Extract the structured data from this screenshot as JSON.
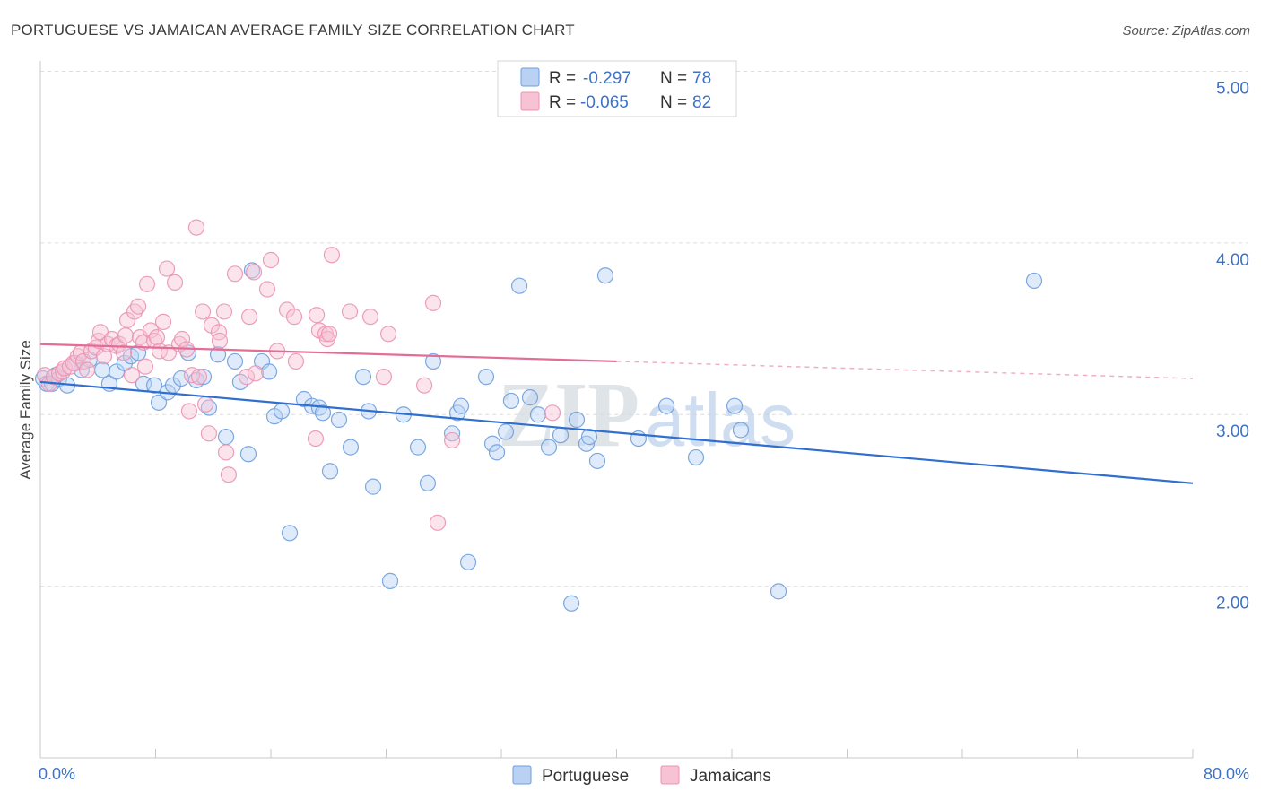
{
  "source": "Source: ZipAtlas.com",
  "watermark": {
    "zip": "ZIP",
    "atlas": "atlas"
  },
  "legend": {
    "r_label": "R =",
    "n_label": "N ="
  },
  "chart_data": {
    "type": "scatter",
    "title": "PORTUGUESE VS JAMAICAN AVERAGE FAMILY SIZE CORRELATION CHART",
    "xlabel": "",
    "ylabel": "Average Family Size",
    "xlim": [
      0,
      80
    ],
    "ylim": [
      1.0,
      5.06
    ],
    "x_ticks": [
      0,
      8,
      16,
      24,
      32,
      40,
      48,
      56,
      64,
      72,
      80
    ],
    "x_tick_labels": [
      "0.0%",
      "80.0%"
    ],
    "y_ticks": [
      {
        "value": 5,
        "label": "5.00"
      },
      {
        "value": 4,
        "label": "4.00"
      },
      {
        "value": 3,
        "label": "3.00"
      },
      {
        "value": 2,
        "label": "2.00"
      }
    ],
    "grid": true,
    "series": [
      {
        "name": "Portuguese",
        "r": "-0.297",
        "n": "78",
        "fill": "#b9d2f3",
        "stroke": "#6f9fdd",
        "line_color": "#2f6fd0",
        "trend": {
          "start": [
            0,
            3.19
          ],
          "end": [
            80,
            2.6
          ],
          "solid_until": 80
        },
        "points": [
          [
            0.19,
            3.21
          ],
          [
            0.44,
            3.18
          ],
          [
            0.81,
            3.18
          ],
          [
            1.06,
            3.23
          ],
          [
            1.31,
            3.21
          ],
          [
            1.87,
            3.17
          ],
          [
            2.43,
            3.3
          ],
          [
            2.86,
            3.26
          ],
          [
            3.42,
            3.32
          ],
          [
            4.3,
            3.26
          ],
          [
            4.79,
            3.18
          ],
          [
            5.29,
            3.25
          ],
          [
            5.85,
            3.3
          ],
          [
            6.29,
            3.34
          ],
          [
            6.79,
            3.36
          ],
          [
            7.16,
            3.18
          ],
          [
            7.91,
            3.17
          ],
          [
            8.22,
            3.07
          ],
          [
            8.84,
            3.13
          ],
          [
            9.21,
            3.17
          ],
          [
            9.77,
            3.21
          ],
          [
            10.27,
            3.36
          ],
          [
            10.83,
            3.2
          ],
          [
            11.33,
            3.22
          ],
          [
            11.7,
            3.04
          ],
          [
            12.33,
            3.35
          ],
          [
            12.89,
            2.87
          ],
          [
            13.51,
            3.31
          ],
          [
            13.88,
            3.19
          ],
          [
            14.44,
            2.77
          ],
          [
            14.69,
            3.84
          ],
          [
            15.38,
            3.31
          ],
          [
            15.88,
            3.25
          ],
          [
            16.25,
            2.99
          ],
          [
            16.75,
            3.02
          ],
          [
            17.31,
            2.31
          ],
          [
            18.3,
            3.09
          ],
          [
            18.86,
            3.05
          ],
          [
            19.36,
            3.04
          ],
          [
            19.61,
            3.01
          ],
          [
            20.11,
            2.67
          ],
          [
            20.73,
            2.97
          ],
          [
            21.54,
            2.81
          ],
          [
            22.41,
            3.22
          ],
          [
            22.79,
            3.02
          ],
          [
            23.1,
            2.58
          ],
          [
            24.28,
            2.03
          ],
          [
            25.21,
            3.0
          ],
          [
            26.21,
            2.81
          ],
          [
            26.89,
            2.6
          ],
          [
            27.27,
            3.31
          ],
          [
            28.58,
            2.89
          ],
          [
            28.95,
            3.01
          ],
          [
            29.2,
            3.05
          ],
          [
            29.7,
            2.14
          ],
          [
            30.94,
            3.22
          ],
          [
            31.38,
            2.83
          ],
          [
            31.69,
            2.78
          ],
          [
            32.31,
            2.9
          ],
          [
            32.68,
            3.08
          ],
          [
            33.25,
            3.75
          ],
          [
            33.99,
            3.1
          ],
          [
            34.55,
            3.0
          ],
          [
            35.3,
            2.81
          ],
          [
            36.11,
            2.88
          ],
          [
            36.86,
            1.9
          ],
          [
            37.23,
            2.97
          ],
          [
            37.91,
            2.83
          ],
          [
            38.1,
            2.87
          ],
          [
            38.66,
            2.73
          ],
          [
            39.22,
            3.81
          ],
          [
            41.52,
            2.86
          ],
          [
            43.46,
            3.05
          ],
          [
            45.51,
            2.75
          ],
          [
            48.19,
            3.05
          ],
          [
            48.62,
            2.91
          ],
          [
            51.24,
            1.97
          ],
          [
            68.98,
            3.78
          ]
        ]
      },
      {
        "name": "Jamaicans",
        "r": "-0.065",
        "n": "82",
        "fill": "#f7c3d4",
        "stroke": "#eb93b3",
        "line_color": "#e36d97",
        "trend": {
          "start": [
            0,
            3.41
          ],
          "end": [
            80,
            3.21
          ],
          "solid_until": 40
        },
        "points": [
          [
            0.31,
            3.23
          ],
          [
            0.62,
            3.18
          ],
          [
            0.93,
            3.22
          ],
          [
            1.31,
            3.24
          ],
          [
            1.56,
            3.25
          ],
          [
            1.68,
            3.27
          ],
          [
            2.05,
            3.28
          ],
          [
            2.3,
            3.3
          ],
          [
            2.61,
            3.34
          ],
          [
            2.8,
            3.36
          ],
          [
            2.99,
            3.31
          ],
          [
            3.24,
            3.26
          ],
          [
            3.55,
            3.37
          ],
          [
            3.86,
            3.39
          ],
          [
            4.05,
            3.43
          ],
          [
            4.17,
            3.48
          ],
          [
            4.42,
            3.34
          ],
          [
            4.67,
            3.41
          ],
          [
            4.98,
            3.44
          ],
          [
            5.29,
            3.4
          ],
          [
            5.48,
            3.41
          ],
          [
            5.79,
            3.36
          ],
          [
            5.91,
            3.46
          ],
          [
            6.04,
            3.55
          ],
          [
            6.35,
            3.23
          ],
          [
            6.54,
            3.6
          ],
          [
            6.79,
            3.63
          ],
          [
            6.91,
            3.45
          ],
          [
            7.16,
            3.42
          ],
          [
            7.28,
            3.28
          ],
          [
            7.41,
            3.76
          ],
          [
            7.66,
            3.49
          ],
          [
            7.91,
            3.43
          ],
          [
            8.09,
            3.45
          ],
          [
            8.28,
            3.37
          ],
          [
            8.53,
            3.54
          ],
          [
            8.78,
            3.85
          ],
          [
            8.9,
            3.36
          ],
          [
            9.34,
            3.77
          ],
          [
            9.65,
            3.41
          ],
          [
            9.84,
            3.44
          ],
          [
            10.15,
            3.38
          ],
          [
            10.33,
            3.02
          ],
          [
            10.52,
            3.23
          ],
          [
            10.83,
            4.09
          ],
          [
            11.02,
            3.22
          ],
          [
            11.27,
            3.6
          ],
          [
            11.46,
            3.06
          ],
          [
            11.7,
            2.89
          ],
          [
            11.89,
            3.52
          ],
          [
            12.39,
            3.48
          ],
          [
            12.45,
            3.43
          ],
          [
            12.76,
            3.6
          ],
          [
            12.89,
            2.78
          ],
          [
            13.07,
            2.65
          ],
          [
            13.51,
            3.82
          ],
          [
            14.32,
            3.22
          ],
          [
            14.51,
            3.57
          ],
          [
            14.82,
            3.83
          ],
          [
            14.94,
            3.24
          ],
          [
            15.75,
            3.73
          ],
          [
            16.0,
            3.9
          ],
          [
            16.44,
            3.37
          ],
          [
            17.12,
            3.61
          ],
          [
            17.62,
            3.57
          ],
          [
            17.74,
            3.31
          ],
          [
            19.11,
            2.86
          ],
          [
            19.18,
            3.58
          ],
          [
            19.36,
            3.49
          ],
          [
            19.8,
            3.47
          ],
          [
            19.92,
            3.44
          ],
          [
            20.05,
            3.47
          ],
          [
            20.23,
            3.93
          ],
          [
            21.48,
            3.6
          ],
          [
            22.91,
            3.57
          ],
          [
            23.84,
            3.22
          ],
          [
            24.16,
            3.47
          ],
          [
            26.65,
            3.17
          ],
          [
            27.27,
            3.65
          ],
          [
            27.58,
            2.37
          ],
          [
            28.58,
            2.85
          ],
          [
            35.55,
            3.01
          ]
        ]
      }
    ]
  }
}
